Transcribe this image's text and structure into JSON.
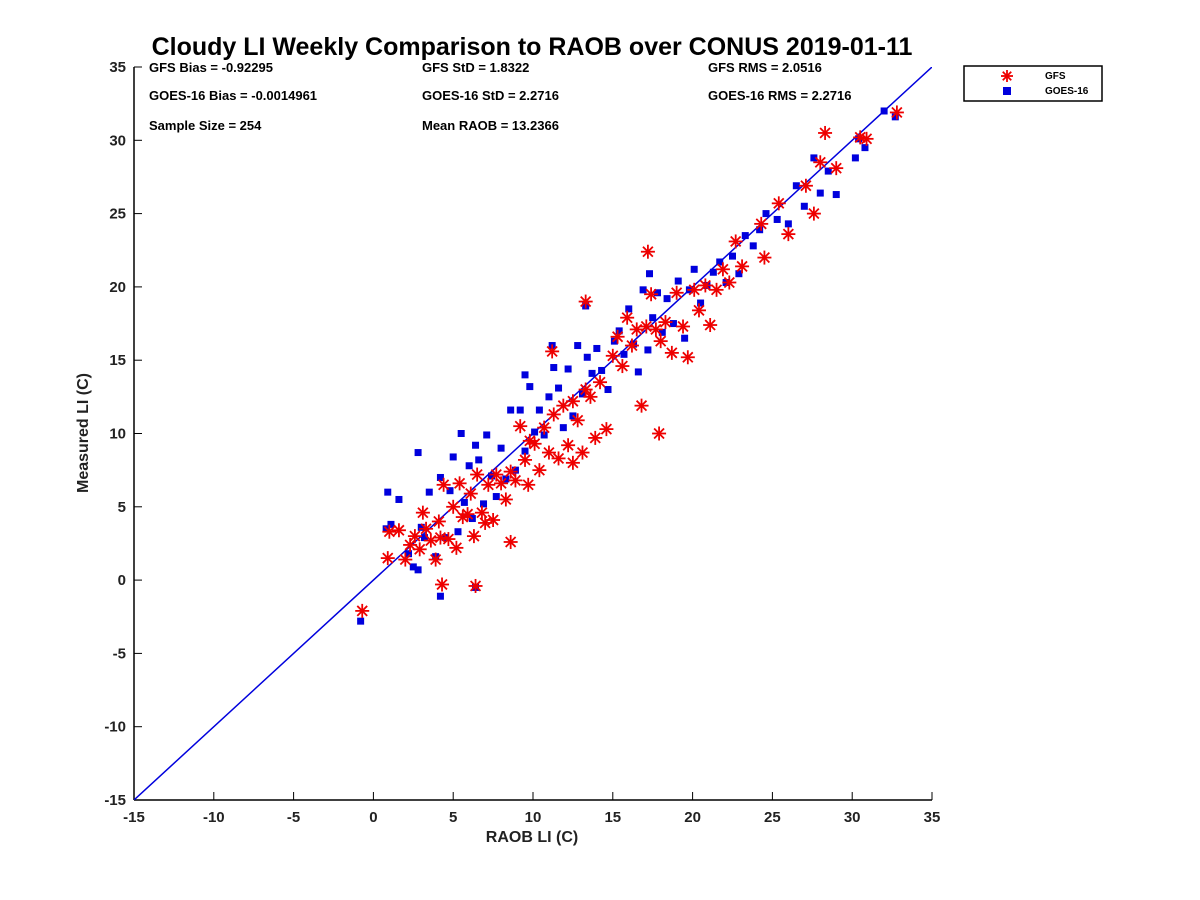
{
  "chart_data": {
    "type": "scatter",
    "title": "Cloudy LI Weekly Comparison to RAOB over CONUS 2019-01-11",
    "xlabel": "RAOB LI (C)",
    "ylabel": "Measured LI (C)",
    "xlim": [
      -15,
      35
    ],
    "ylim": [
      -15,
      35
    ],
    "xticks": [
      "-15",
      "-10",
      "-5",
      "0",
      "5",
      "10",
      "15",
      "20",
      "25",
      "30",
      "35"
    ],
    "yticks": [
      "-15",
      "-10",
      "-5",
      "0",
      "5",
      "10",
      "15",
      "20",
      "25",
      "30",
      "35"
    ],
    "grid": false,
    "legend_position": "top-right",
    "reference_line": {
      "x": [
        -15,
        35
      ],
      "y": [
        -15,
        35
      ],
      "color": "#0000dd"
    },
    "stats": {
      "gfs_bias": "GFS Bias = -0.92295",
      "goes_bias": "GOES-16 Bias = -0.0014961",
      "sample_size": "Sample Size = 254",
      "gfs_std": "GFS StD = 1.8322",
      "goes_std": "GOES-16 StD = 2.2716",
      "mean_raob": "Mean RAOB = 13.2366",
      "gfs_rms": "GFS RMS = 2.0516",
      "goes_rms": "GOES-16 RMS = 2.2716"
    },
    "series": [
      {
        "name": "GFS",
        "marker": "asterisk",
        "color": "#ee0000",
        "x": [
          -0.7,
          0.9,
          1.0,
          1.6,
          2.0,
          2.3,
          2.6,
          2.9,
          3.1,
          3.3,
          3.6,
          3.9,
          4.1,
          4.2,
          4.4,
          4.7,
          5.0,
          5.2,
          5.4,
          5.6,
          5.9,
          6.1,
          6.3,
          6.5,
          6.8,
          7.0,
          7.2,
          7.5,
          7.7,
          8.0,
          8.3,
          8.6,
          8.9,
          9.2,
          9.5,
          9.8,
          10.1,
          10.4,
          10.7,
          11.0,
          11.3,
          11.6,
          11.9,
          12.2,
          12.5,
          12.8,
          13.1,
          13.3,
          13.6,
          13.9,
          14.2,
          14.6,
          15.0,
          15.3,
          15.6,
          15.9,
          16.2,
          16.5,
          16.8,
          17.1,
          17.4,
          17.7,
          18.0,
          18.3,
          18.7,
          19.0,
          19.4,
          19.7,
          20.1,
          20.4,
          20.8,
          21.1,
          21.5,
          21.9,
          22.3,
          22.7,
          23.1,
          24.3,
          24.5,
          25.4,
          26.0,
          27.1,
          27.6,
          28.0,
          28.3,
          29.0,
          30.5,
          30.9,
          32.8,
          4.3,
          6.4,
          8.6,
          13.3,
          17.2,
          17.9,
          11.2,
          9.7,
          12.5
        ],
        "y": [
          -2.1,
          1.5,
          3.3,
          3.4,
          1.4,
          2.4,
          3.0,
          2.1,
          4.6,
          3.5,
          2.7,
          1.4,
          4.0,
          2.9,
          6.5,
          2.8,
          5.0,
          2.2,
          6.6,
          4.3,
          4.5,
          5.9,
          3.0,
          7.2,
          4.6,
          3.9,
          6.5,
          4.1,
          7.2,
          6.6,
          5.5,
          7.4,
          6.8,
          10.5,
          8.2,
          9.5,
          9.3,
          7.5,
          10.4,
          8.7,
          11.3,
          8.3,
          11.9,
          9.2,
          12.2,
          10.9,
          8.7,
          13.0,
          12.5,
          9.7,
          13.5,
          10.3,
          15.3,
          16.6,
          14.6,
          17.9,
          16.0,
          17.1,
          11.9,
          17.3,
          19.5,
          17.1,
          16.3,
          17.6,
          15.5,
          19.6,
          17.3,
          15.2,
          19.8,
          18.4,
          20.1,
          17.4,
          19.8,
          21.2,
          20.3,
          23.1,
          21.4,
          24.3,
          22.0,
          25.7,
          23.6,
          26.9,
          25.0,
          28.5,
          30.5,
          28.1,
          30.2,
          30.1,
          31.9,
          -0.3,
          -0.4,
          2.6,
          19.0,
          22.4,
          10.0,
          15.6,
          6.5,
          8.0
        ]
      },
      {
        "name": "GOES-16",
        "marker": "square",
        "color": "#0000dd",
        "x": [
          -0.8,
          0.8,
          0.9,
          1.1,
          1.6,
          2.2,
          2.5,
          2.8,
          3.0,
          3.2,
          3.5,
          3.9,
          4.2,
          4.5,
          4.8,
          5.0,
          5.3,
          5.5,
          5.7,
          6.0,
          6.2,
          6.4,
          6.6,
          6.9,
          7.1,
          7.4,
          7.7,
          8.0,
          8.3,
          8.6,
          8.9,
          9.2,
          9.5,
          9.8,
          10.1,
          10.4,
          10.7,
          11.0,
          11.3,
          11.6,
          11.9,
          12.2,
          12.5,
          12.8,
          13.1,
          13.4,
          13.7,
          14.0,
          14.3,
          14.7,
          15.1,
          15.4,
          15.7,
          16.0,
          16.3,
          16.6,
          16.9,
          17.2,
          17.5,
          17.8,
          18.1,
          18.4,
          18.8,
          19.1,
          19.5,
          19.8,
          20.1,
          20.5,
          20.9,
          21.3,
          21.7,
          22.1,
          22.5,
          22.9,
          23.3,
          23.8,
          24.2,
          24.6,
          25.3,
          26.0,
          26.5,
          27.0,
          27.6,
          28.0,
          28.5,
          29.0,
          30.2,
          30.4,
          30.8,
          32.0,
          32.7,
          4.2,
          6.4,
          2.8,
          9.5,
          11.2,
          13.3,
          17.3
        ],
        "y": [
          -2.8,
          3.5,
          6.0,
          3.8,
          5.5,
          1.8,
          0.9,
          8.7,
          3.6,
          2.9,
          6.0,
          1.6,
          7.0,
          2.9,
          6.1,
          8.4,
          3.3,
          10.0,
          5.3,
          7.8,
          4.2,
          9.2,
          8.2,
          5.2,
          9.9,
          7.1,
          5.7,
          9.0,
          6.9,
          11.6,
          7.5,
          11.6,
          8.8,
          13.2,
          10.1,
          11.6,
          9.9,
          12.5,
          14.5,
          13.1,
          10.4,
          14.4,
          11.2,
          16.0,
          12.7,
          15.2,
          14.1,
          15.8,
          14.3,
          13.0,
          16.3,
          17.0,
          15.4,
          18.5,
          16.1,
          14.2,
          19.8,
          15.7,
          17.9,
          19.6,
          16.9,
          19.2,
          17.5,
          20.4,
          16.5,
          19.8,
          21.2,
          18.9,
          20.1,
          21.0,
          21.7,
          20.3,
          22.1,
          20.9,
          23.5,
          22.8,
          23.9,
          25.0,
          24.6,
          24.3,
          26.9,
          25.5,
          28.8,
          26.4,
          27.9,
          26.3,
          28.8,
          30.1,
          29.5,
          32.0,
          31.6,
          -1.1,
          -0.5,
          0.7,
          14.0,
          16.0,
          18.7,
          20.9
        ]
      }
    ]
  }
}
